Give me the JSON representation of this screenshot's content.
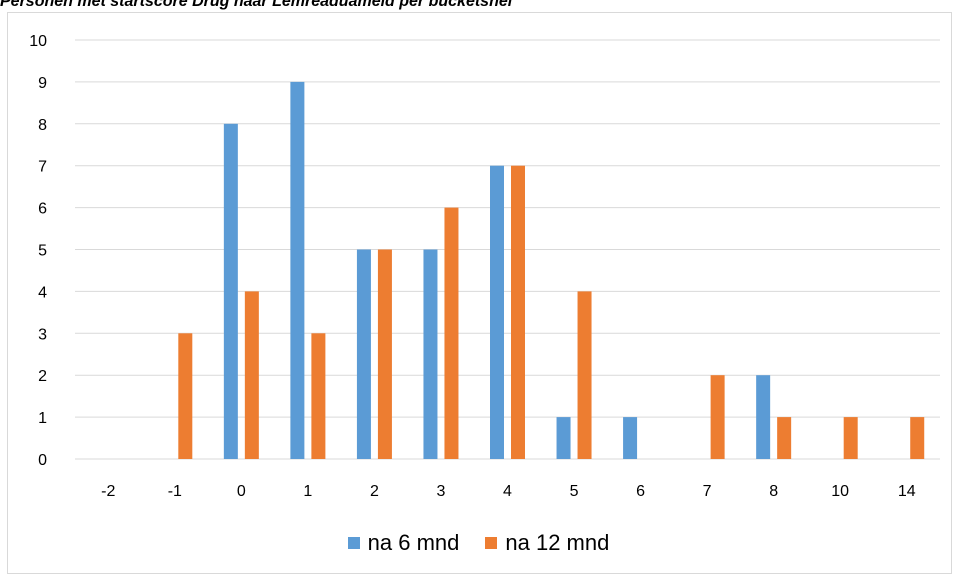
{
  "title": "Personen met startscore Drug naar Lemreaduameld per bucketsnel",
  "chart_data": {
    "type": "bar",
    "categories": [
      "-2",
      "-1",
      "0",
      "1",
      "2",
      "3",
      "4",
      "5",
      "6",
      "7",
      "8",
      "10",
      "14"
    ],
    "series": [
      {
        "name": "na 6 mnd",
        "color": "#5b9bd5",
        "values": [
          0,
          0,
          8,
          9,
          5,
          5,
          7,
          1,
          1,
          0,
          2,
          0,
          0
        ]
      },
      {
        "name": "na 12 mnd",
        "color": "#ed7d31",
        "values": [
          0,
          3,
          4,
          3,
          5,
          6,
          7,
          4,
          0,
          2,
          1,
          1,
          1
        ]
      }
    ],
    "ylim": [
      0,
      10
    ],
    "yticks": [
      "0",
      "1",
      "2",
      "3",
      "4",
      "5",
      "6",
      "7",
      "8",
      "9",
      "10"
    ],
    "grid": true,
    "legend_position": "bottom"
  }
}
